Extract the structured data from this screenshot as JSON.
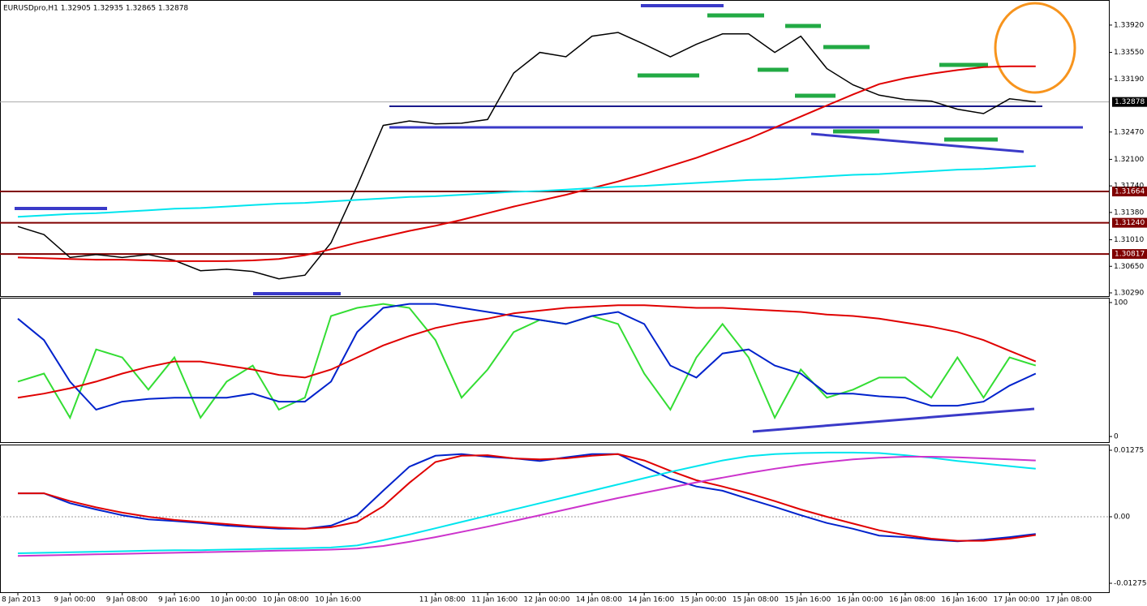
{
  "chart_data": [
    {
      "type": "line",
      "title": "EURUSDpro,H1  1.32905 1.32935 1.32865 1.32878",
      "categories": [
        "8 Jan 2013",
        null,
        "9 Jan 00:00",
        null,
        "9 Jan 08:00",
        null,
        "9 Jan 16:00",
        null,
        "10 Jan 00:00",
        null,
        "10 Jan 08:00",
        null,
        "10 Jan 16:00",
        null,
        null,
        null,
        "11 Jan 08:00",
        null,
        "11 Jan 16:00",
        null,
        "12 Jan 00:00",
        null,
        "14 Jan 08:00",
        null,
        "14 Jan 16:00",
        null,
        "15 Jan 00:00",
        null,
        "15 Jan 08:00",
        null,
        "15 Jan 16:00",
        null,
        "16 Jan 00:00",
        null,
        "16 Jan 08:00",
        null,
        "16 Jan 16:00",
        null,
        "17 Jan 00:00",
        null,
        "17 Jan 08:00"
      ],
      "series": [
        {
          "color": "#000000",
          "values": [
            1.3119,
            1.3108,
            1.3077,
            1.3081,
            1.3077,
            1.3081,
            1.3073,
            1.3059,
            1.3061,
            1.3058,
            1.3048,
            1.3053,
            1.3097,
            1.3174,
            1.3256,
            1.3262,
            1.3258,
            1.3259,
            1.3264,
            1.3327,
            1.3355,
            1.3349,
            1.3377,
            1.3382,
            1.3366,
            1.3349,
            1.3366,
            1.338,
            1.338,
            1.3355,
            1.3377,
            1.3333,
            1.3311,
            1.3297,
            1.3291,
            1.3289,
            1.3278,
            1.3272,
            1.3292,
            1.3288,
            null
          ]
        },
        {
          "color": "#e00000",
          "values": [
            1.3077,
            1.3076,
            1.3075,
            1.3074,
            1.3074,
            1.3073,
            1.3072,
            1.3072,
            1.3072,
            1.3073,
            1.3075,
            1.308,
            1.3088,
            1.3097,
            1.3105,
            1.3113,
            1.312,
            1.3128,
            1.3137,
            1.3146,
            1.3154,
            1.3162,
            1.3171,
            1.318,
            1.319,
            1.3201,
            1.3212,
            1.3225,
            1.3238,
            1.3253,
            1.3268,
            1.3283,
            1.3298,
            1.3312,
            1.332,
            1.3326,
            1.3331,
            1.3335,
            1.3336,
            1.3336,
            null
          ]
        },
        {
          "color": "#00e5ee",
          "values": [
            1.3132,
            1.3134,
            1.3136,
            1.3137,
            1.3139,
            1.3141,
            1.3143,
            1.3144,
            1.3146,
            1.3148,
            1.315,
            1.3151,
            1.3153,
            1.3155,
            1.3157,
            1.3159,
            1.316,
            1.3162,
            1.3164,
            1.3166,
            1.3167,
            1.3169,
            1.3171,
            1.3173,
            1.3174,
            1.3176,
            1.3178,
            1.318,
            1.3182,
            1.3183,
            1.3185,
            1.3187,
            1.3189,
            1.319,
            1.3192,
            1.3194,
            1.3196,
            1.3197,
            1.3199,
            1.3201,
            null
          ]
        }
      ],
      "levels": [
        1.31664,
        {
          "value": 1.3124,
          "label": "1.31240"
        },
        1.30817
      ],
      "current_price": 1.32878,
      "ylim": [
        1.30246,
        1.3426
      ],
      "yticks": [
        {
          "value": 1.3392,
          "label": "1.33920"
        },
        {
          "value": 1.3355,
          "label": "1.33550"
        },
        {
          "value": 1.3319,
          "label": "1.33190"
        },
        {
          "value": 1.3247,
          "label": "1.32470"
        },
        {
          "value": 1.321,
          "label": "1.32100"
        },
        {
          "value": 1.3174,
          "label": "1.31740"
        },
        {
          "value": 1.3138,
          "label": "1.31380"
        },
        {
          "value": 1.3101,
          "label": "1.31010"
        },
        {
          "value": 1.3065,
          "label": "1.30650"
        },
        {
          "value": 1.3029,
          "label": "1.30290"
        }
      ]
    },
    {
      "type": "line",
      "series": [
        {
          "color": "#33dd33",
          "values": [
            41,
            47,
            14,
            65,
            59,
            35,
            59,
            14,
            41,
            53,
            20,
            29,
            90,
            96,
            99,
            96,
            72,
            29,
            50,
            78,
            87,
            84,
            90,
            84,
            47,
            20,
            59,
            84,
            59,
            14,
            50,
            29,
            35,
            44,
            44,
            29,
            59,
            29,
            59,
            53,
            null
          ]
        },
        {
          "color": "#0022cc",
          "values": [
            88,
            72,
            41,
            20,
            26,
            28,
            29,
            29,
            29,
            32,
            26,
            26,
            41,
            78,
            96,
            99,
            99,
            96,
            93,
            90,
            87,
            84,
            90,
            93,
            84,
            53,
            44,
            62,
            65,
            53,
            47,
            32,
            32,
            30,
            29,
            23,
            23,
            26,
            38,
            47,
            null
          ]
        },
        {
          "color": "#e00000",
          "values": [
            29,
            32,
            36,
            41,
            47,
            52,
            56,
            56,
            53,
            50,
            46,
            44,
            50,
            59,
            68,
            75,
            81,
            85,
            88,
            92,
            94,
            96,
            97,
            98,
            98,
            97,
            96,
            96,
            95,
            94,
            93,
            91,
            90,
            88,
            85,
            82,
            78,
            72,
            64,
            56,
            null
          ]
        }
      ],
      "ylim": [
        -4.2,
        103.6
      ],
      "yticks": [
        100,
        0
      ]
    },
    {
      "type": "line",
      "series": [
        {
          "color": "#0022cc",
          "values": [
            0.0045,
            0.0045,
            0.0026,
            0.0014,
            0.0003,
            -0.0005,
            -0.0008,
            -0.0012,
            -0.0017,
            -0.002,
            -0.0023,
            -0.0023,
            -0.0017,
            0.0003,
            0.005,
            0.0096,
            0.0117,
            0.012,
            0.0115,
            0.0112,
            0.0107,
            0.0114,
            0.012,
            0.012,
            0.0096,
            0.0073,
            0.0058,
            0.005,
            0.0034,
            0.0019,
            0.0003,
            -0.0012,
            -0.0023,
            -0.0036,
            -0.0039,
            -0.0044,
            -0.0047,
            -0.0044,
            -0.0039,
            -0.0033,
            null
          ]
        },
        {
          "color": "#e00000",
          "values": [
            0.0045,
            0.0045,
            0.003,
            0.0018,
            0.0008,
            0,
            -0.0006,
            -0.001,
            -0.0014,
            -0.0018,
            -0.0021,
            -0.0023,
            -0.002,
            -0.001,
            0.002,
            0.0065,
            0.0105,
            0.0117,
            0.0118,
            0.0112,
            0.011,
            0.0112,
            0.0117,
            0.012,
            0.0108,
            0.0088,
            0.007,
            0.0058,
            0.0045,
            0.003,
            0.0014,
            0,
            -0.0013,
            -0.0026,
            -0.0035,
            -0.0042,
            -0.0046,
            -0.0046,
            -0.0042,
            -0.0035,
            null
          ]
        },
        {
          "color": "#00e5ee",
          "values": [
            -0.007,
            -0.0069,
            -0.0068,
            -0.0067,
            -0.0066,
            -0.0065,
            -0.0064,
            -0.0064,
            -0.0063,
            -0.0062,
            -0.0061,
            -0.006,
            -0.0059,
            -0.0055,
            -0.0045,
            -0.0034,
            -0.0022,
            -0.001,
            0.0002,
            0.0014,
            0.0026,
            0.0038,
            0.005,
            0.0062,
            0.0074,
            0.0086,
            0.0097,
            0.0108,
            0.0116,
            0.012,
            0.0122,
            0.0123,
            0.0123,
            0.0122,
            0.0118,
            0.0113,
            0.0107,
            0.0102,
            0.0097,
            0.0092,
            null
          ]
        },
        {
          "color": "#cc33cc",
          "values": [
            -0.0075,
            -0.0074,
            -0.0073,
            -0.0072,
            -0.0071,
            -0.007,
            -0.0069,
            -0.0068,
            -0.0067,
            -0.0066,
            -0.0065,
            -0.0064,
            -0.0063,
            -0.0061,
            -0.0056,
            -0.0048,
            -0.0039,
            -0.0029,
            -0.0019,
            -0.0008,
            0.0003,
            0.0014,
            0.0025,
            0.0036,
            0.0046,
            0.0056,
            0.0066,
            0.0075,
            0.0084,
            0.0092,
            0.0099,
            0.0105,
            0.011,
            0.0113,
            0.0115,
            0.0115,
            0.0114,
            0.0112,
            0.011,
            0.0108,
            null
          ]
        }
      ],
      "ylim": [
        -0.01446,
        0.01384
      ],
      "yticks": [
        0.01275,
        {
          "value": 0,
          "label": "0.00"
        },
        -0.01275
      ],
      "zero_line": true
    }
  ]
}
